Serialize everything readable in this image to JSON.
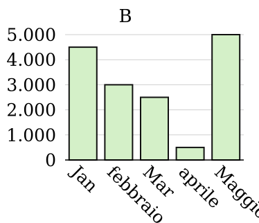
{
  "chart_data": {
    "type": "bar",
    "title": "B",
    "categories": [
      "Jan",
      "febbraio",
      "Mar",
      "aprile",
      "Maggio"
    ],
    "values": [
      4500,
      3000,
      2500,
      500,
      5000
    ],
    "ylim": [
      0,
      5000
    ],
    "yticks": [
      0,
      1000,
      2000,
      3000,
      4000,
      5000
    ],
    "ytick_labels": [
      "0",
      "1.000",
      "2.000",
      "3.000",
      "4.000",
      "5.000"
    ],
    "grid": true,
    "bar_color": "#d4f0c8",
    "bar_edge_color": "#111111"
  }
}
